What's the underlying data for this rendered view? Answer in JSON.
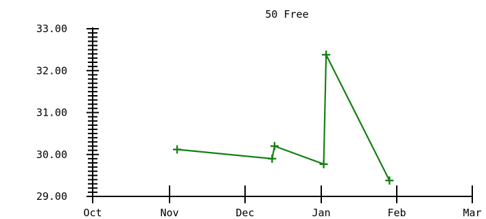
{
  "chart_data": {
    "type": "line",
    "title": "50 Free",
    "xlabel": "",
    "ylabel": "",
    "x_ticks": [
      "Oct",
      "Nov",
      "Dec",
      "Jan",
      "Feb",
      "Mar"
    ],
    "y_ticks": [
      "29.00",
      "30.00",
      "31.00",
      "32.00",
      "33.00"
    ],
    "ylim": [
      29,
      33
    ],
    "y_minor_step": 0.1,
    "grid": false,
    "series": [
      {
        "color": "#138012",
        "marker": "plus",
        "points": [
          {
            "x": "Nov 4",
            "y": 30.12
          },
          {
            "x": "Dec 12",
            "y": 29.9
          },
          {
            "x": "Dec 13",
            "y": 30.2
          },
          {
            "x": "Jan 2",
            "y": 29.77
          },
          {
            "x": "Jan 3",
            "y": 32.38
          },
          {
            "x": "Jan 29",
            "y": 29.38
          }
        ]
      }
    ]
  }
}
